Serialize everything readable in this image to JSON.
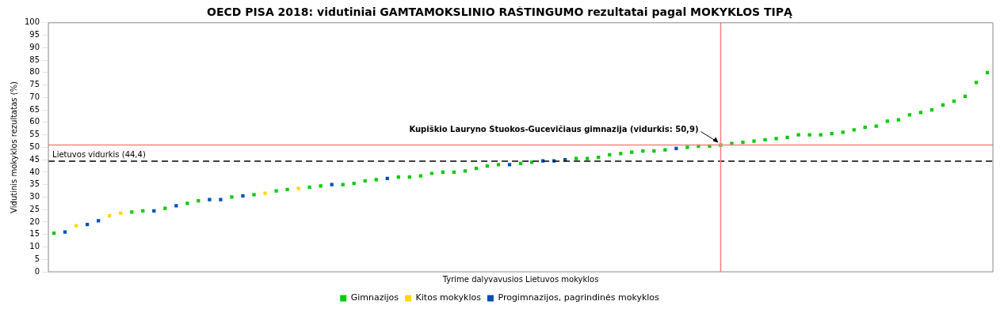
{
  "chart_data": {
    "type": "scatter",
    "title": "OECD PISA 2018: vidutiniai GAMTAMOKSLINIO RAŠTINGUMO rezultatai pagal MOKYKLOS TIPĄ",
    "xlabel": "Tyrime dalyvavusios Lietuvos mokyklos",
    "ylabel": "Vidutinis mokyklos rezultatas (%)",
    "ylim": [
      0,
      100
    ],
    "yticks": [
      0,
      5,
      10,
      15,
      20,
      25,
      30,
      35,
      40,
      45,
      50,
      55,
      60,
      65,
      70,
      75,
      80,
      85,
      90,
      95,
      100
    ],
    "tick_labels": "y",
    "legend": "bottom",
    "marker": "square",
    "categories": [
      null,
      null,
      null,
      null,
      null,
      null,
      null,
      null,
      null,
      null,
      null,
      null,
      null,
      null,
      null,
      null,
      null,
      null,
      null,
      null,
      null,
      null,
      null,
      null,
      null,
      null,
      null,
      null,
      null,
      null,
      null,
      null,
      null,
      null,
      null,
      null,
      null,
      null,
      null,
      null,
      null,
      null,
      null,
      null,
      null,
      null,
      null,
      null,
      null,
      null,
      null,
      null,
      null,
      null,
      null,
      null,
      null,
      null,
      null,
      null,
      null,
      null,
      null,
      null,
      null,
      null,
      null,
      null,
      null,
      null,
      null,
      null,
      null,
      null,
      null,
      null,
      null,
      null,
      null,
      null,
      null,
      null,
      null,
      null,
      null
    ],
    "series": [
      {
        "name": "Gimnazijos",
        "color": "#00cc00",
        "values": [
          15.5,
          null,
          null,
          null,
          null,
          null,
          null,
          24,
          24.5,
          null,
          25.5,
          null,
          27.5,
          28.5,
          null,
          null,
          30,
          null,
          31,
          null,
          32.5,
          33,
          null,
          34,
          34.5,
          null,
          35,
          35.5,
          36.5,
          37,
          null,
          38,
          38,
          38.5,
          39.5,
          40,
          40,
          40.5,
          41.5,
          42.5,
          43,
          null,
          43.5,
          44,
          null,
          null,
          null,
          45.5,
          45.5,
          46,
          47,
          47.5,
          48,
          48.5,
          48.5,
          49,
          null,
          50,
          50.5,
          50.5,
          50.9,
          51.5,
          52,
          52.5,
          53,
          53.5,
          54,
          55,
          55,
          55,
          55.5,
          56,
          57,
          58,
          58.5,
          60.5,
          61,
          63,
          64,
          65,
          67,
          68.5,
          70.5,
          76,
          80
        ]
      },
      {
        "name": "Kitos mokyklos",
        "color": "#ffd700",
        "values": [
          null,
          null,
          18.5,
          null,
          null,
          22.5,
          23.5,
          null,
          null,
          null,
          null,
          null,
          null,
          null,
          null,
          null,
          null,
          null,
          null,
          31.5,
          null,
          null,
          33.5,
          null,
          null,
          null,
          null,
          null,
          null,
          null,
          null,
          null,
          null,
          null,
          null,
          null,
          null,
          null,
          null,
          null,
          null,
          null,
          null,
          null,
          null,
          null,
          null,
          null,
          null,
          null,
          null,
          null,
          null,
          null,
          null,
          null,
          null,
          null,
          null,
          null,
          null,
          null,
          null,
          null,
          null,
          null,
          null,
          null,
          null,
          null,
          null,
          null,
          null,
          null,
          null,
          null,
          null,
          null,
          null,
          null,
          null,
          null,
          null,
          null,
          null
        ]
      },
      {
        "name": "Progimnazijos, pagrindinės mokyklos",
        "color": "#0050b4",
        "values": [
          null,
          16,
          null,
          19,
          20.5,
          null,
          null,
          null,
          null,
          24.5,
          null,
          26.5,
          null,
          null,
          29,
          29,
          null,
          30.5,
          null,
          null,
          null,
          null,
          null,
          null,
          null,
          35,
          null,
          null,
          null,
          null,
          37.5,
          null,
          null,
          null,
          null,
          null,
          null,
          null,
          null,
          null,
          null,
          43,
          null,
          null,
          44.5,
          44.5,
          45,
          null,
          null,
          null,
          null,
          null,
          null,
          null,
          null,
          null,
          49.5,
          null,
          null,
          null,
          null,
          null,
          null,
          null,
          null,
          null,
          null,
          null,
          null,
          null,
          null,
          null,
          null,
          null,
          null,
          null,
          null,
          null,
          null,
          null,
          null,
          null,
          null,
          null,
          null
        ]
      }
    ],
    "ref_lines": [
      {
        "axis": "y",
        "value": 44.4,
        "label": "Lietuvos vidurkis (44,4)",
        "color": "#000000",
        "line_style": "dashed"
      },
      {
        "axis": "y",
        "value": 50.9,
        "color": "#ff8080"
      }
    ],
    "annotations": [
      {
        "text": "Kupiškio Lauryno Stuokos-Gucevičiaus gimnazija (vidurkis: 50,9)",
        "y": 50.9
      }
    ]
  }
}
